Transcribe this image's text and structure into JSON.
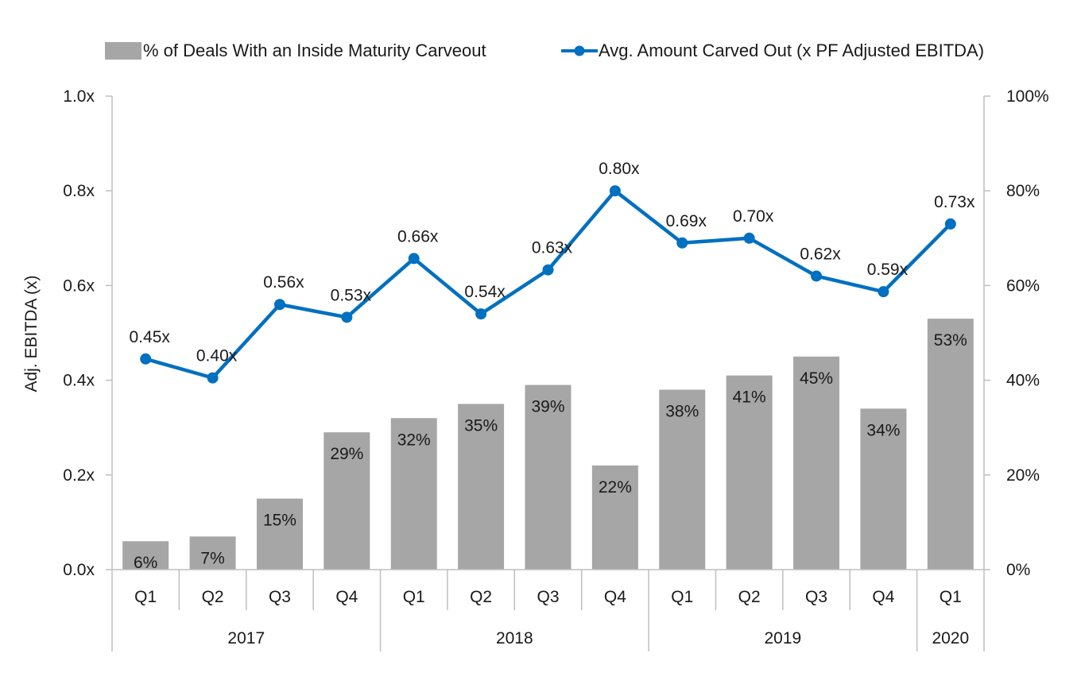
{
  "chart_data": {
    "type": "bar",
    "categories": [
      "Q1",
      "Q2",
      "Q3",
      "Q4",
      "Q1",
      "Q2",
      "Q3",
      "Q4",
      "Q1",
      "Q2",
      "Q3",
      "Q4",
      "Q1"
    ],
    "years": [
      {
        "label": "2017",
        "count": 4
      },
      {
        "label": "2018",
        "count": 4
      },
      {
        "label": "2019",
        "count": 4
      },
      {
        "label": "2020",
        "count": 1
      }
    ],
    "series": [
      {
        "name": "% of Deals With an Inside Maturity Carveout",
        "type": "bar",
        "axis": "right",
        "color": "#a6a6a6",
        "values": [
          6,
          7,
          15,
          29,
          32,
          35,
          39,
          22,
          38,
          41,
          45,
          34,
          53
        ],
        "labels": [
          "6%",
          "7%",
          "15%",
          "29%",
          "32%",
          "35%",
          "39%",
          "22%",
          "38%",
          "41%",
          "45%",
          "34%",
          "53%"
        ]
      },
      {
        "name": "Avg. Amount Carved Out (x PF Adjusted EBITDA)",
        "type": "line",
        "axis": "left",
        "color": "#0070c0",
        "values": [
          0.445,
          0.405,
          0.56,
          0.533,
          0.657,
          0.54,
          0.633,
          0.8,
          0.69,
          0.7,
          0.62,
          0.587,
          0.73
        ],
        "labels": [
          "0.45x",
          "0.40x",
          "0.56x",
          "0.53x",
          "0.66x",
          "0.54x",
          "0.63x",
          "0.80x",
          "0.69x",
          "0.70x",
          "0.62x",
          "0.59x",
          "0.73x"
        ]
      }
    ],
    "ylabel": "Adj. EBITDA (x)",
    "ylim": [
      0,
      1.0
    ],
    "y_ticks": [
      "0.0x",
      "0.2x",
      "0.4x",
      "0.6x",
      "0.8x",
      "1.0x"
    ],
    "y2lim": [
      0,
      100
    ],
    "y2_ticks": [
      "0%",
      "20%",
      "40%",
      "60%",
      "80%",
      "100%"
    ],
    "grid": false,
    "legend_position": "top"
  }
}
